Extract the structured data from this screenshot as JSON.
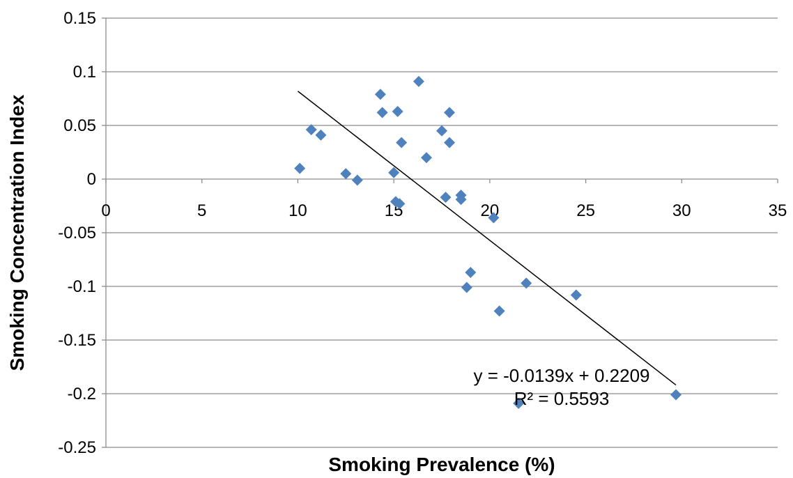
{
  "chart_data": {
    "type": "scatter",
    "title": "",
    "xlabel": "Smoking Prevalence (%)",
    "ylabel": "Smoking Concentration Index",
    "xlim": [
      0,
      35
    ],
    "ylim": [
      -0.25,
      0.15
    ],
    "x_ticks": [
      0,
      5,
      10,
      15,
      20,
      25,
      30,
      35
    ],
    "y_ticks": [
      0.15,
      0.1,
      0.05,
      0,
      -0.05,
      -0.1,
      -0.15,
      -0.2,
      -0.25
    ],
    "x_tick_labels": [
      "0",
      "5",
      "10",
      "15",
      "20",
      "25",
      "30",
      "35"
    ],
    "y_tick_labels": [
      "0.15",
      "0.1",
      "0.05",
      "0",
      "-0.05",
      "-0.1",
      "-0.15",
      "-0.2",
      "-0.25"
    ],
    "grid": "horizontal",
    "marker_color": "#4F81BD",
    "points": [
      {
        "x": 10.1,
        "y": 0.01
      },
      {
        "x": 10.7,
        "y": 0.046
      },
      {
        "x": 11.2,
        "y": 0.041
      },
      {
        "x": 12.5,
        "y": 0.005
      },
      {
        "x": 13.1,
        "y": -0.001
      },
      {
        "x": 14.3,
        "y": 0.079
      },
      {
        "x": 14.4,
        "y": 0.062
      },
      {
        "x": 15.0,
        "y": 0.006
      },
      {
        "x": 15.1,
        "y": -0.021
      },
      {
        "x": 15.2,
        "y": 0.063
      },
      {
        "x": 15.3,
        "y": -0.023
      },
      {
        "x": 15.4,
        "y": 0.034
      },
      {
        "x": 16.3,
        "y": 0.091
      },
      {
        "x": 16.7,
        "y": 0.02
      },
      {
        "x": 17.5,
        "y": 0.045
      },
      {
        "x": 17.7,
        "y": -0.017
      },
      {
        "x": 17.9,
        "y": 0.062
      },
      {
        "x": 17.9,
        "y": 0.034
      },
      {
        "x": 18.5,
        "y": -0.015
      },
      {
        "x": 18.5,
        "y": -0.019
      },
      {
        "x": 18.8,
        "y": -0.101
      },
      {
        "x": 19.0,
        "y": -0.087
      },
      {
        "x": 20.2,
        "y": -0.036
      },
      {
        "x": 20.5,
        "y": -0.123
      },
      {
        "x": 21.5,
        "y": -0.209
      },
      {
        "x": 21.9,
        "y": -0.097
      },
      {
        "x": 24.5,
        "y": -0.108
      },
      {
        "x": 29.7,
        "y": -0.201
      }
    ],
    "trendline": {
      "type": "linear",
      "slope": -0.0139,
      "intercept": 0.2209,
      "x_range": [
        10.0,
        29.7
      ],
      "color": "#000000",
      "equation": "y = -0.0139x + 0.2209",
      "r_squared": "R² = 0.5593"
    }
  }
}
